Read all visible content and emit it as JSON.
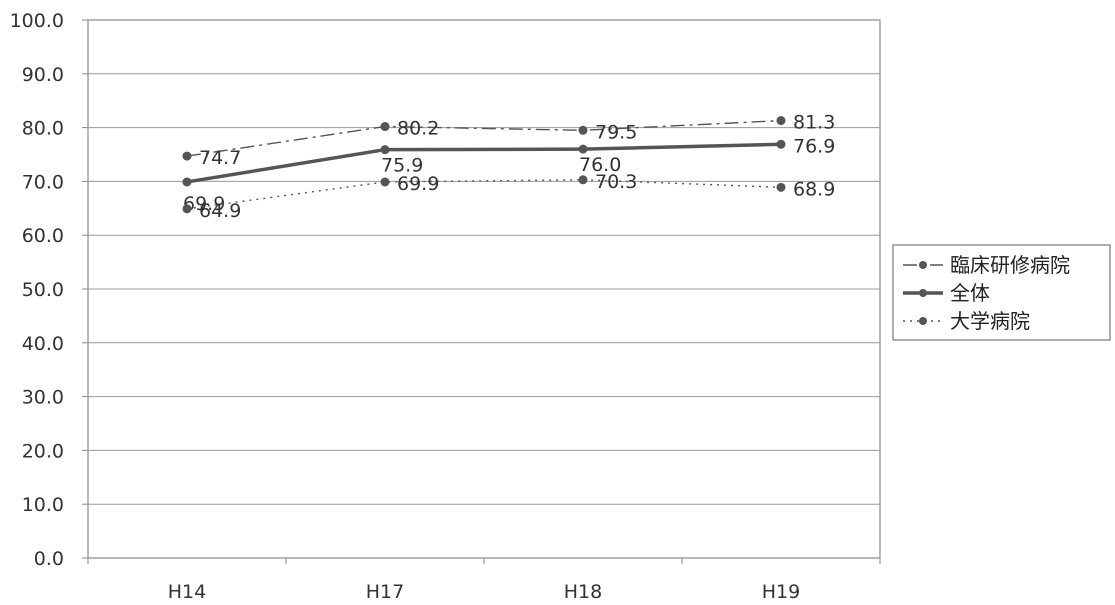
{
  "chart_data": {
    "type": "line",
    "categories": [
      "H14",
      "H17",
      "H18",
      "H19"
    ],
    "ylim": [
      0,
      100
    ],
    "yticks": [
      "0.0",
      "10.0",
      "20.0",
      "30.0",
      "40.0",
      "50.0",
      "60.0",
      "70.0",
      "80.0",
      "90.0",
      "100.0"
    ],
    "grid": true,
    "legend_position": "right",
    "series": [
      {
        "name": "臨床研修病院",
        "style": "dashdot",
        "values": [
          74.7,
          80.2,
          79.5,
          81.3
        ],
        "labels": [
          "74.7",
          "80.2",
          "79.5",
          "81.3"
        ],
        "color": "#555555"
      },
      {
        "name": "全体",
        "style": "solid",
        "values": [
          69.9,
          75.9,
          76.0,
          76.9
        ],
        "labels": [
          "69.9",
          "75.9",
          "76.0",
          "76.9"
        ],
        "color": "#555555"
      },
      {
        "name": "大学病院",
        "style": "dotted",
        "values": [
          64.9,
          69.9,
          70.3,
          68.9
        ],
        "labels": [
          "64.9",
          "69.9",
          "70.3",
          "68.9"
        ],
        "color": "#555555"
      }
    ]
  }
}
